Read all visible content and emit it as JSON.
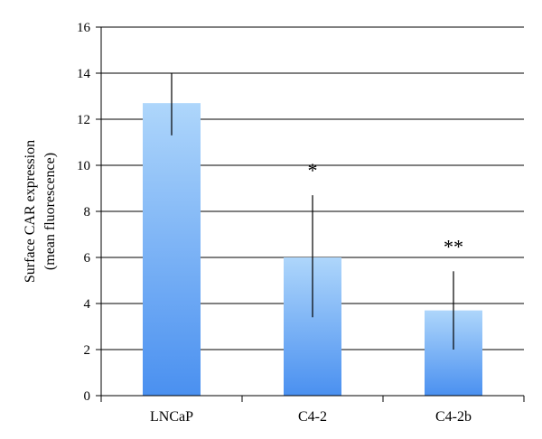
{
  "chart_data": {
    "type": "bar",
    "categories": [
      "LNCaP",
      "C4-2",
      "C4-2b"
    ],
    "values": [
      12.7,
      6.0,
      3.7
    ],
    "error_low": [
      11.3,
      3.4,
      2.0
    ],
    "error_high": [
      14.0,
      8.7,
      5.4
    ],
    "annotations": [
      "",
      "*",
      "**"
    ],
    "ylabel_lines": [
      "Surface CAR expression",
      "(mean fluorescence)"
    ],
    "ylim": [
      0,
      16
    ],
    "yticks": [
      0,
      2,
      4,
      6,
      8,
      10,
      12,
      14,
      16
    ],
    "grid": true,
    "colors": {
      "bar_top": "#aed6fb",
      "bar_bottom": "#4a90f0",
      "grid": "#000000",
      "axis": "#000000"
    }
  }
}
